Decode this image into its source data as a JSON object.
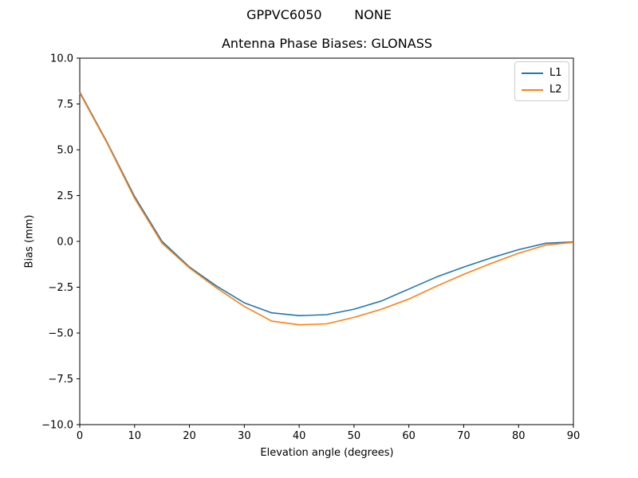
{
  "suptitle": "GPPVC6050        NONE",
  "chart_data": {
    "type": "line",
    "title": "Antenna Phase Biases: GLONASS",
    "xlabel": "Elevation angle (degrees)",
    "ylabel": "Bias (mm)",
    "xlim": [
      0,
      90
    ],
    "ylim": [
      -10,
      10
    ],
    "xticks": [
      0,
      10,
      20,
      30,
      40,
      50,
      60,
      70,
      80,
      90
    ],
    "yticks": [
      10.0,
      7.5,
      5.0,
      2.5,
      0.0,
      -2.5,
      -5.0,
      -7.5,
      -10.0
    ],
    "ytick_labels": [
      "10.0",
      "7.5",
      "5.0",
      "2.5",
      "0.0",
      "−2.5",
      "−5.0",
      "−7.5",
      "−10.0"
    ],
    "grid": false,
    "legend_position": "upper right",
    "x": [
      0,
      5,
      10,
      15,
      20,
      25,
      30,
      35,
      40,
      45,
      50,
      55,
      60,
      65,
      70,
      75,
      80,
      85,
      90
    ],
    "series": [
      {
        "name": "L1",
        "color": "#1f77b4",
        "values": [
          8.15,
          5.4,
          2.45,
          0.0,
          -1.4,
          -2.45,
          -3.35,
          -3.9,
          -4.05,
          -4.0,
          -3.7,
          -3.25,
          -2.6,
          -1.95,
          -1.4,
          -0.9,
          -0.45,
          -0.1,
          -0.03
        ]
      },
      {
        "name": "L2",
        "color": "#ff7f0e",
        "values": [
          8.1,
          5.35,
          2.35,
          -0.1,
          -1.45,
          -2.55,
          -3.55,
          -4.35,
          -4.55,
          -4.5,
          -4.15,
          -3.7,
          -3.15,
          -2.45,
          -1.8,
          -1.2,
          -0.65,
          -0.2,
          -0.05
        ]
      }
    ]
  }
}
